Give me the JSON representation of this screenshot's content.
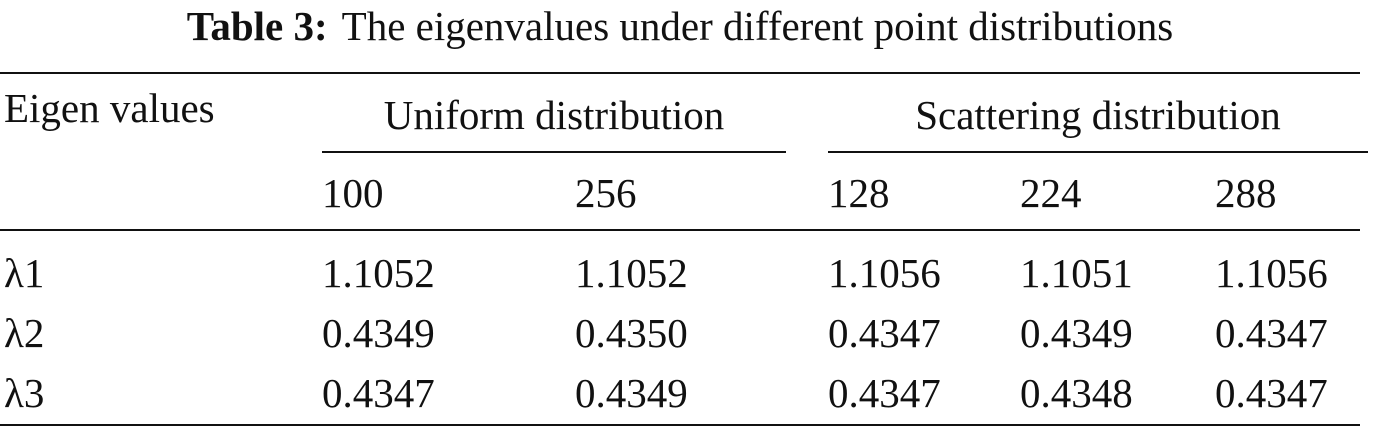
{
  "caption": {
    "label": "Table 3:",
    "text": "The eigenvalues under different point distributions"
  },
  "table": {
    "row_header": "Eigen values",
    "groups": [
      {
        "name": "Uniform distribution",
        "columns": [
          "100",
          "256"
        ]
      },
      {
        "name": "Scattering distribution",
        "columns": [
          "128",
          "224",
          "288"
        ]
      }
    ],
    "rows": [
      [
        "λ1",
        "1.1052",
        "1.1052",
        "1.1056",
        "1.1051",
        "1.1056"
      ],
      [
        "λ2",
        "0.4349",
        "0.4350",
        "0.4347",
        "0.4349",
        "0.4347"
      ],
      [
        "λ3",
        "0.4347",
        "0.4349",
        "0.4347",
        "0.4348",
        "0.4347"
      ]
    ]
  }
}
